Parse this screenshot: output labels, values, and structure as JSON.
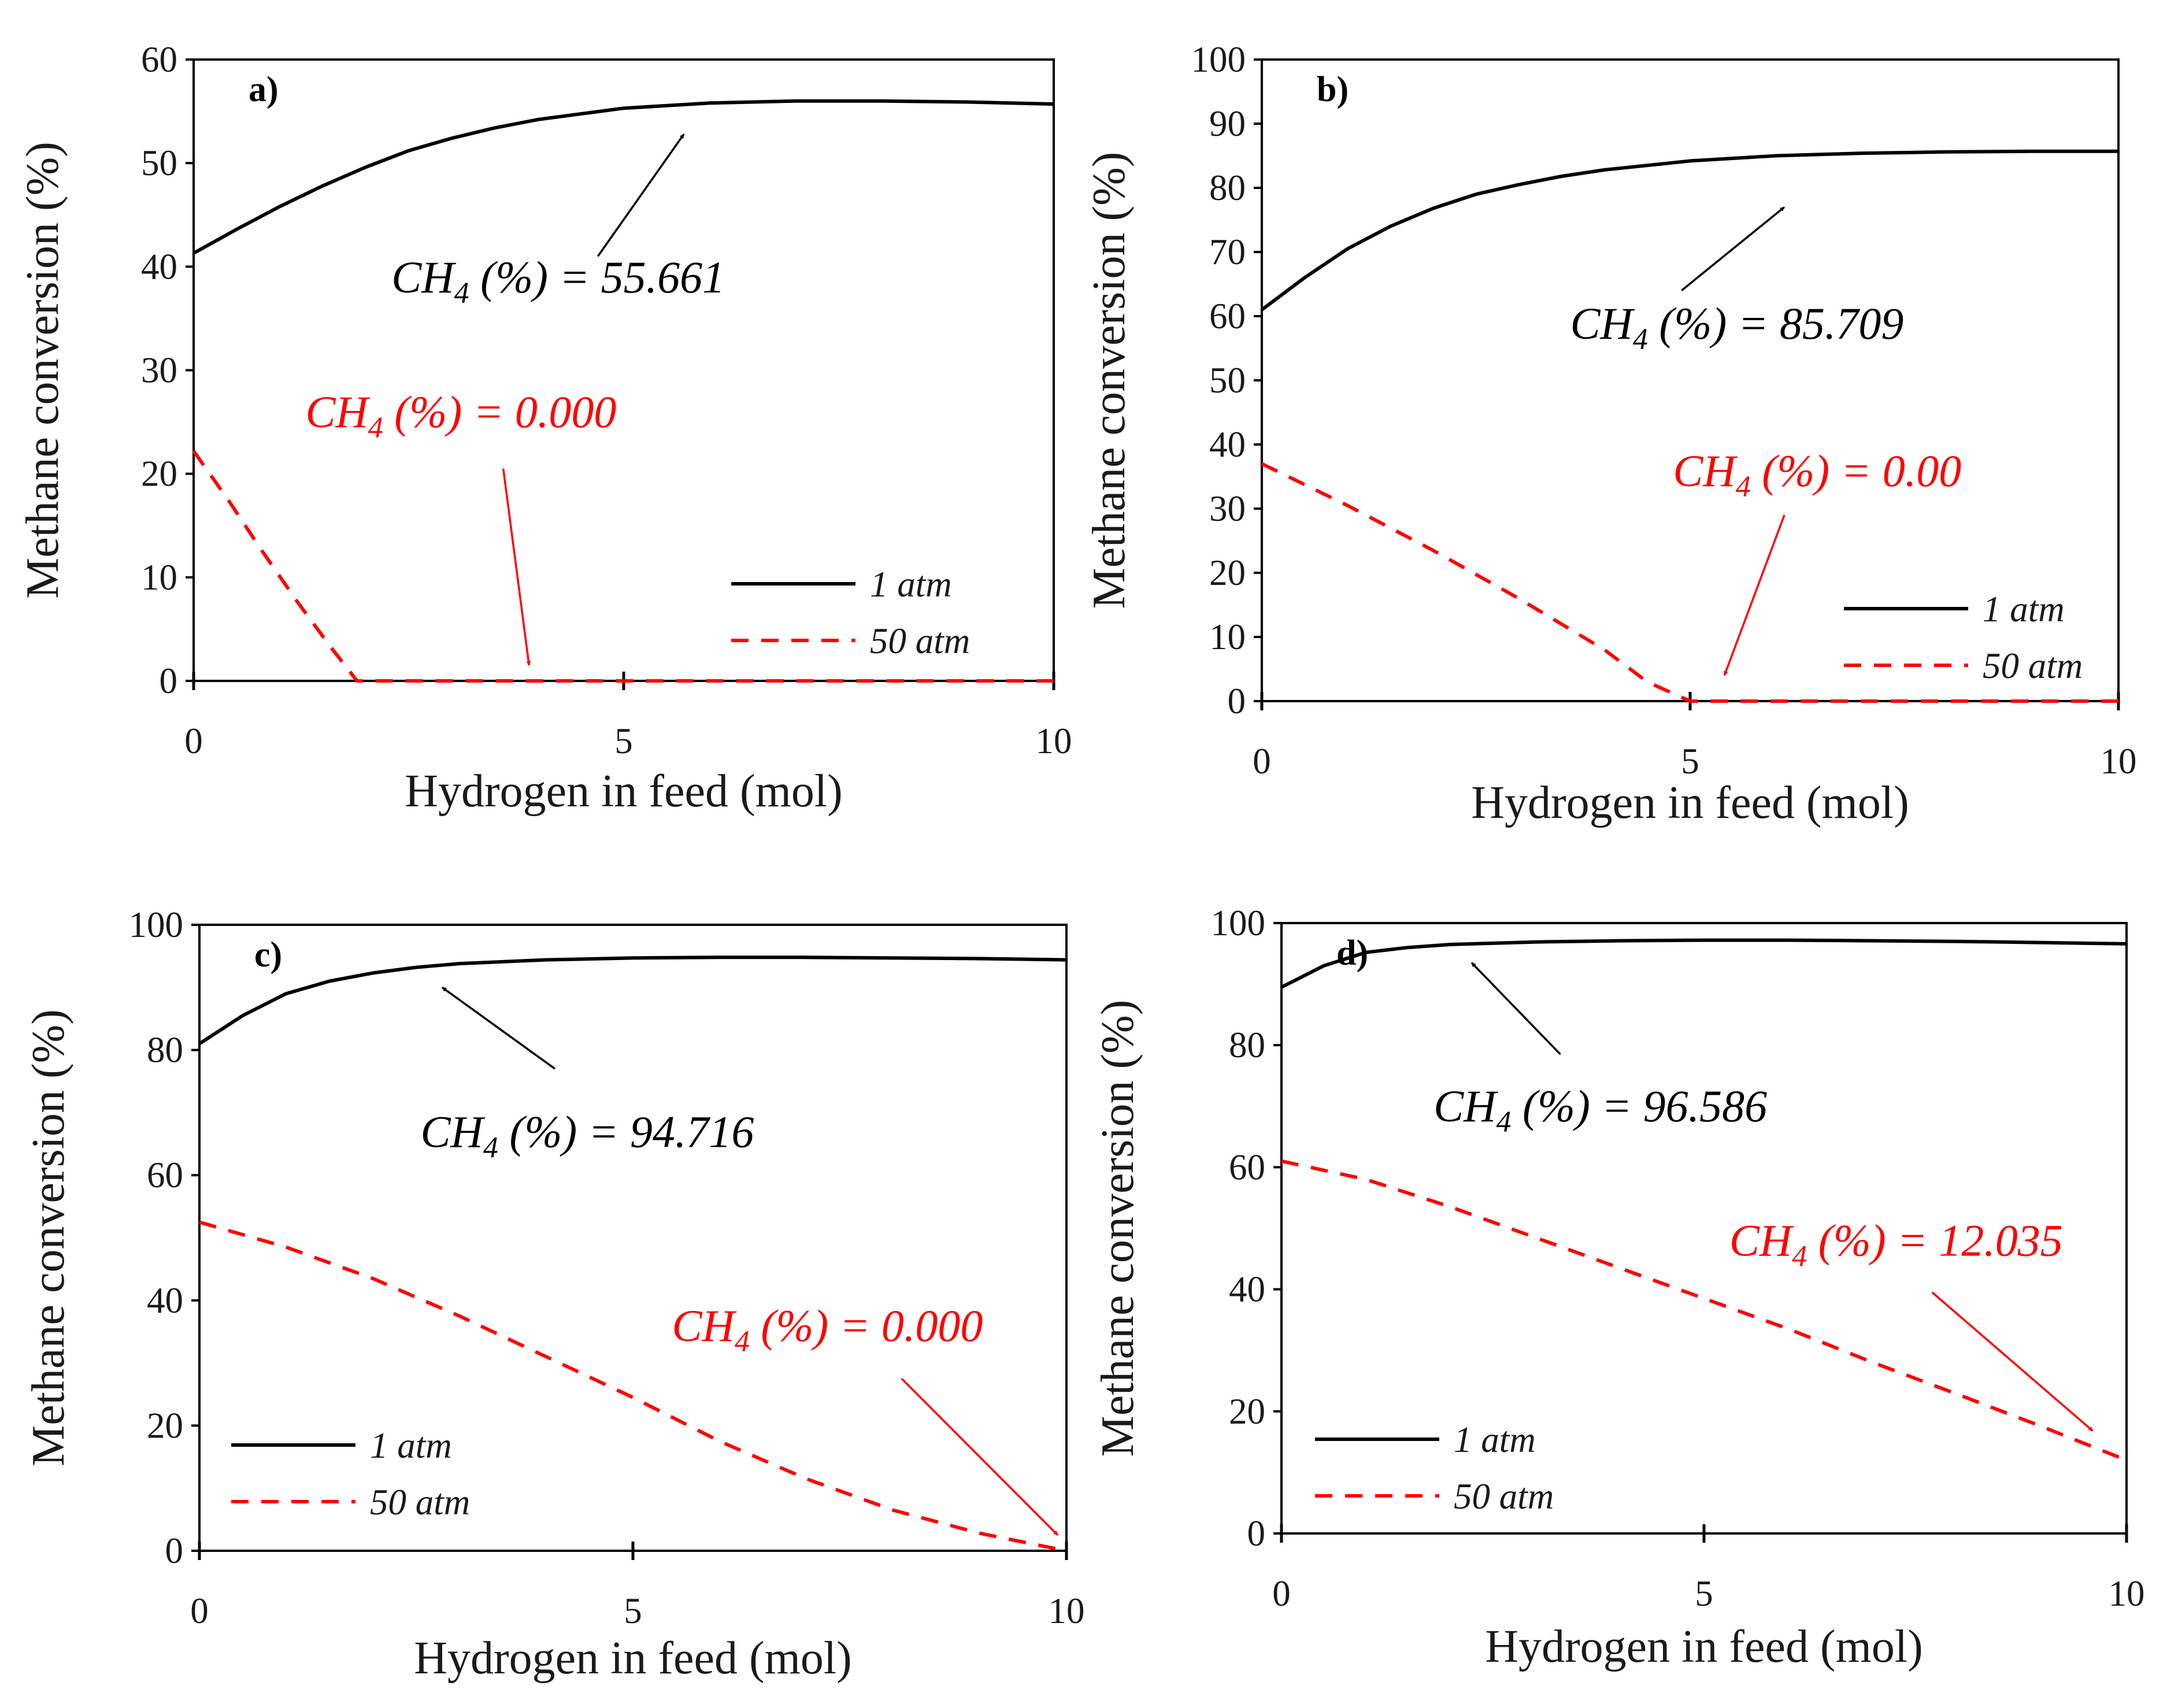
{
  "chart_data": [
    {
      "type": "line",
      "panel_label": "a)",
      "xlabel": "Hydrogen in feed (mol)",
      "ylabel": "Methane conversion (%)",
      "xlim": [
        0,
        10
      ],
      "ylim": [
        0,
        60
      ],
      "xticks": [
        0,
        5,
        10
      ],
      "yticks": [
        0,
        10,
        20,
        30,
        40,
        50,
        60
      ],
      "legend": "bottom-right",
      "series": [
        {
          "name": "1 atm",
          "color": "#000000",
          "dash": "solid",
          "x": [
            0,
            0.5,
            1,
            1.5,
            2,
            2.5,
            3,
            3.5,
            4,
            5,
            6,
            7,
            8,
            9,
            10
          ],
          "y": [
            41.3,
            43.6,
            45.8,
            47.8,
            49.6,
            51.2,
            52.4,
            53.4,
            54.2,
            55.3,
            55.8,
            56.0,
            56.0,
            55.9,
            55.7
          ]
        },
        {
          "name": "50 atm",
          "color": "#ff0000",
          "dash": "dashed",
          "x": [
            0,
            0.4,
            0.8,
            1.2,
            1.6,
            1.9,
            2.5,
            4,
            6,
            8,
            10
          ],
          "y": [
            22.2,
            17.5,
            12.5,
            7.7,
            3.2,
            0,
            0,
            0,
            0,
            0,
            0
          ]
        }
      ],
      "annotations": [
        {
          "text": "CH",
          "sub": "4",
          "rest": " (%)  = 55.661",
          "color": "#000000",
          "x": 2.3,
          "y": 37.5,
          "arrow_from": [
            4.7,
            41
          ],
          "arrow_to": [
            5.7,
            52.8
          ]
        },
        {
          "text": "CH",
          "sub": "4",
          "rest": " (%)  = 0.000",
          "color": "#ff0000",
          "x": 1.3,
          "y": 24.5,
          "arrow_from": [
            3.6,
            20.5
          ],
          "arrow_to": [
            3.9,
            1.5
          ]
        }
      ]
    },
    {
      "type": "line",
      "panel_label": "b)",
      "xlabel": "Hydrogen in feed (mol)",
      "ylabel": "Methane conversion (%)",
      "xlim": [
        0,
        10
      ],
      "ylim": [
        0,
        100
      ],
      "xticks": [
        0,
        5,
        10
      ],
      "yticks": [
        0,
        10,
        20,
        30,
        40,
        50,
        60,
        70,
        80,
        90,
        100
      ],
      "legend": "bottom-right",
      "series": [
        {
          "name": "1 atm",
          "color": "#000000",
          "dash": "solid",
          "x": [
            0,
            0.5,
            1,
            1.5,
            2,
            2.5,
            3,
            3.5,
            4,
            5,
            6,
            7,
            8,
            9,
            10
          ],
          "y": [
            61.0,
            66.0,
            70.5,
            74.0,
            76.8,
            79.0,
            80.5,
            81.8,
            82.8,
            84.2,
            85.0,
            85.4,
            85.6,
            85.7,
            85.7
          ]
        },
        {
          "name": "50 atm",
          "color": "#ff0000",
          "dash": "dashed",
          "x": [
            0,
            1,
            2,
            3,
            4,
            4.5,
            5,
            6,
            7,
            8,
            9,
            10
          ],
          "y": [
            37.0,
            30.5,
            23.5,
            16.0,
            8.0,
            3.0,
            0,
            0,
            0,
            0,
            0,
            0
          ]
        }
      ],
      "annotations": [
        {
          "text": "CH",
          "sub": "4",
          "rest": " (%)  = 85.709",
          "color": "#000000",
          "x": 3.6,
          "y": 56.5,
          "arrow_from": [
            4.9,
            64
          ],
          "arrow_to": [
            6.1,
            77
          ]
        },
        {
          "text": "CH",
          "sub": "4",
          "rest": " (%)  = 0.00",
          "color": "#ff0000",
          "x": 4.8,
          "y": 33.5,
          "arrow_from": [
            6.1,
            29
          ],
          "arrow_to": [
            5.4,
            4
          ]
        }
      ]
    },
    {
      "type": "line",
      "panel_label": "c)",
      "xlabel": "Hydrogen in feed (mol)",
      "ylabel": "Methane conversion (%)",
      "xlim": [
        0,
        10
      ],
      "ylim": [
        0,
        100
      ],
      "xticks": [
        0,
        5,
        10
      ],
      "yticks": [
        0,
        20,
        40,
        60,
        80,
        100
      ],
      "legend": "bottom-left",
      "series": [
        {
          "name": "1 atm",
          "color": "#000000",
          "dash": "solid",
          "x": [
            0,
            0.5,
            1,
            1.5,
            2,
            2.5,
            3,
            4,
            5,
            6,
            7,
            8,
            9,
            10
          ],
          "y": [
            81.0,
            85.5,
            89.0,
            91.0,
            92.3,
            93.2,
            93.8,
            94.4,
            94.7,
            94.8,
            94.8,
            94.7,
            94.6,
            94.4
          ]
        },
        {
          "name": "50 atm",
          "color": "#ff0000",
          "dash": "dashed",
          "x": [
            0,
            1,
            2,
            3,
            4,
            5,
            6,
            7,
            8,
            9,
            10
          ],
          "y": [
            52.5,
            48.5,
            43.5,
            37.5,
            31.0,
            24.5,
            17.5,
            11.5,
            6.5,
            2.8,
            0
          ]
        }
      ],
      "annotations": [
        {
          "text": "CH",
          "sub": "4",
          "rest": " (%) = 94.716",
          "color": "#000000",
          "x": 2.55,
          "y": 64.5,
          "arrow_from": [
            4.1,
            77
          ],
          "arrow_to": [
            2.8,
            90
          ]
        },
        {
          "text": "CH",
          "sub": "4",
          "rest": " (%) = 0.000",
          "color": "#ff0000",
          "x": 5.45,
          "y": 33.5,
          "arrow_from": [
            8.1,
            27.5
          ],
          "arrow_to": [
            9.9,
            2.5
          ]
        }
      ]
    },
    {
      "type": "line",
      "panel_label": "d)",
      "xlabel": "Hydrogen in feed (mol)",
      "ylabel": "Methane conversion (%)",
      "xlim": [
        0,
        10
      ],
      "ylim": [
        0,
        100
      ],
      "xticks": [
        0,
        5,
        10
      ],
      "yticks": [
        0,
        20,
        40,
        60,
        80,
        100
      ],
      "legend": "bottom-left",
      "series": [
        {
          "name": "1 atm",
          "color": "#000000",
          "dash": "solid",
          "x": [
            0,
            0.5,
            1,
            1.5,
            2,
            3,
            4,
            5,
            6,
            7,
            8,
            9,
            10
          ],
          "y": [
            89.5,
            93.0,
            95.2,
            96.0,
            96.5,
            96.9,
            97.1,
            97.2,
            97.2,
            97.1,
            97.0,
            96.8,
            96.6
          ]
        },
        {
          "name": "50 atm",
          "color": "#ff0000",
          "dash": "dashed",
          "x": [
            0,
            1,
            2,
            3,
            4,
            5,
            6,
            7,
            8,
            9,
            10
          ],
          "y": [
            61.0,
            58.0,
            53.5,
            48.5,
            43.5,
            38.5,
            33.5,
            28.0,
            22.8,
            17.5,
            12.0
          ]
        }
      ],
      "annotations": [
        {
          "text": "CH",
          "sub": "4",
          "rest": " (%)  = 96.586",
          "color": "#000000",
          "x": 1.8,
          "y": 67.5,
          "arrow_from": [
            3.3,
            78.5
          ],
          "arrow_to": [
            2.25,
            93.5
          ]
        },
        {
          "text": "CH",
          "sub": "4",
          "rest": " (%)  = 12.035",
          "color": "#ff0000",
          "x": 5.3,
          "y": 45.5,
          "arrow_from": [
            7.7,
            39.5
          ],
          "arrow_to": [
            9.6,
            16.8
          ]
        }
      ]
    }
  ]
}
